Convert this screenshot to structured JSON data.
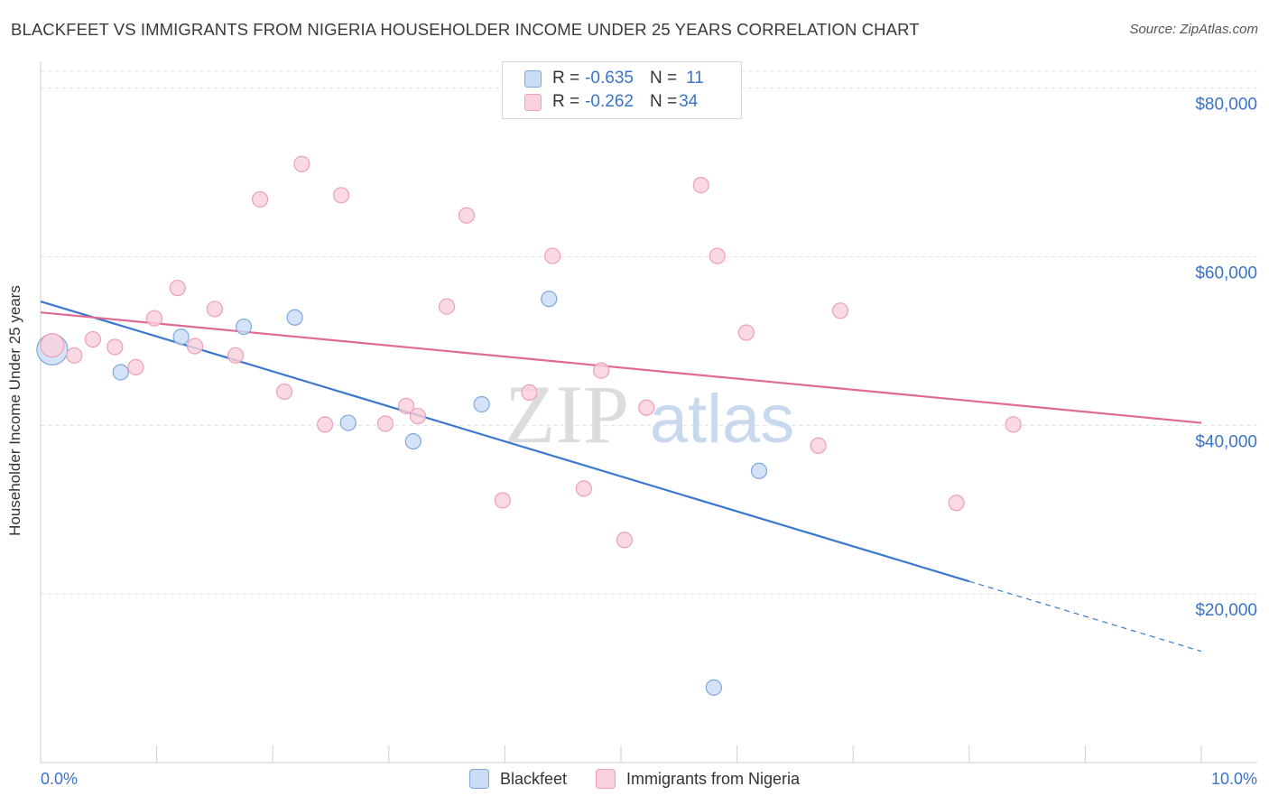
{
  "title": "BLACKFEET VS IMMIGRANTS FROM NIGERIA HOUSEHOLDER INCOME UNDER 25 YEARS CORRELATION CHART",
  "source": "Source: ZipAtlas.com",
  "watermark": {
    "zip": "ZIP",
    "atlas": "atlas"
  },
  "legend": {
    "rows": [
      {
        "r_label": "R = ",
        "r_value": "-0.635",
        "n_label": "N = ",
        "n_value": "11",
        "color": "#a9c8f0"
      },
      {
        "r_label": "R = ",
        "r_value": "-0.262",
        "n_label": "N = ",
        "n_value": "34",
        "color": "#f6b8c9"
      }
    ]
  },
  "colors": {
    "blackfeet_fill": "#c9dcf5",
    "blackfeet_stroke": "#7ea7dc",
    "blackfeet_line": "#3a78d0",
    "nigeria_fill": "#fad0dc",
    "nigeria_stroke": "#eca0b6",
    "nigeria_line": "#e06a93",
    "tick_label": "#3a73c8",
    "grid": "#e2e2e2"
  },
  "chart_data": {
    "type": "scatter",
    "title": "BLACKFEET VS IMMIGRANTS FROM NIGERIA HOUSEHOLDER INCOME UNDER 25 YEARS CORRELATION CHART",
    "xlabel": "",
    "ylabel": "Householder Income Under 25 years",
    "xlim": [
      0,
      10
    ],
    "ylim": [
      0,
      82000
    ],
    "x_tick_labels": [
      "0.0%",
      "10.0%"
    ],
    "y_ticks": [
      20000,
      40000,
      60000,
      80000
    ],
    "y_tick_labels": [
      "$20,000",
      "$40,000",
      "$60,000",
      "$80,000"
    ],
    "grid": true,
    "legend_position": "bottom",
    "series": [
      {
        "name": "Blackfeet",
        "points": [
          {
            "x": 0.1,
            "y": 49000,
            "size": "large"
          },
          {
            "x": 0.69,
            "y": 46300
          },
          {
            "x": 1.21,
            "y": 50500
          },
          {
            "x": 1.75,
            "y": 51700
          },
          {
            "x": 2.19,
            "y": 52800
          },
          {
            "x": 2.65,
            "y": 40300
          },
          {
            "x": 3.21,
            "y": 38100
          },
          {
            "x": 3.8,
            "y": 42500
          },
          {
            "x": 4.38,
            "y": 55000
          },
          {
            "x": 5.8,
            "y": 8900
          },
          {
            "x": 6.19,
            "y": 34600
          }
        ],
        "trend": {
          "x0": 0.0,
          "y0": 54700,
          "x1": 8.0,
          "y1": 21500,
          "dashed_to_x": 10.0,
          "dashed_to_y": 13200
        }
      },
      {
        "name": "Immigrants from Nigeria",
        "points": [
          {
            "x": 0.1,
            "y": 49500,
            "size": "large"
          },
          {
            "x": 0.29,
            "y": 48300
          },
          {
            "x": 0.45,
            "y": 50200
          },
          {
            "x": 0.64,
            "y": 49300
          },
          {
            "x": 0.82,
            "y": 46900
          },
          {
            "x": 0.98,
            "y": 52700
          },
          {
            "x": 1.18,
            "y": 56300
          },
          {
            "x": 1.33,
            "y": 49400
          },
          {
            "x": 1.5,
            "y": 53800
          },
          {
            "x": 1.68,
            "y": 48300
          },
          {
            "x": 1.89,
            "y": 66800
          },
          {
            "x": 2.1,
            "y": 44000
          },
          {
            "x": 2.25,
            "y": 71000
          },
          {
            "x": 2.45,
            "y": 40100
          },
          {
            "x": 2.59,
            "y": 67300
          },
          {
            "x": 2.97,
            "y": 40200
          },
          {
            "x": 3.15,
            "y": 42300
          },
          {
            "x": 3.25,
            "y": 41100
          },
          {
            "x": 3.5,
            "y": 54100
          },
          {
            "x": 3.67,
            "y": 64900
          },
          {
            "x": 3.98,
            "y": 31100
          },
          {
            "x": 4.21,
            "y": 43900
          },
          {
            "x": 4.41,
            "y": 60100
          },
          {
            "x": 4.68,
            "y": 32500
          },
          {
            "x": 4.83,
            "y": 46500
          },
          {
            "x": 5.03,
            "y": 26400
          },
          {
            "x": 5.22,
            "y": 42100
          },
          {
            "x": 5.69,
            "y": 68500
          },
          {
            "x": 5.83,
            "y": 60100
          },
          {
            "x": 6.08,
            "y": 51000
          },
          {
            "x": 6.7,
            "y": 37600
          },
          {
            "x": 6.89,
            "y": 53600
          },
          {
            "x": 7.89,
            "y": 30800
          },
          {
            "x": 8.38,
            "y": 40100
          }
        ],
        "trend": {
          "x0": 0.0,
          "y0": 53400,
          "x1": 10.0,
          "y1": 40300
        }
      }
    ]
  }
}
